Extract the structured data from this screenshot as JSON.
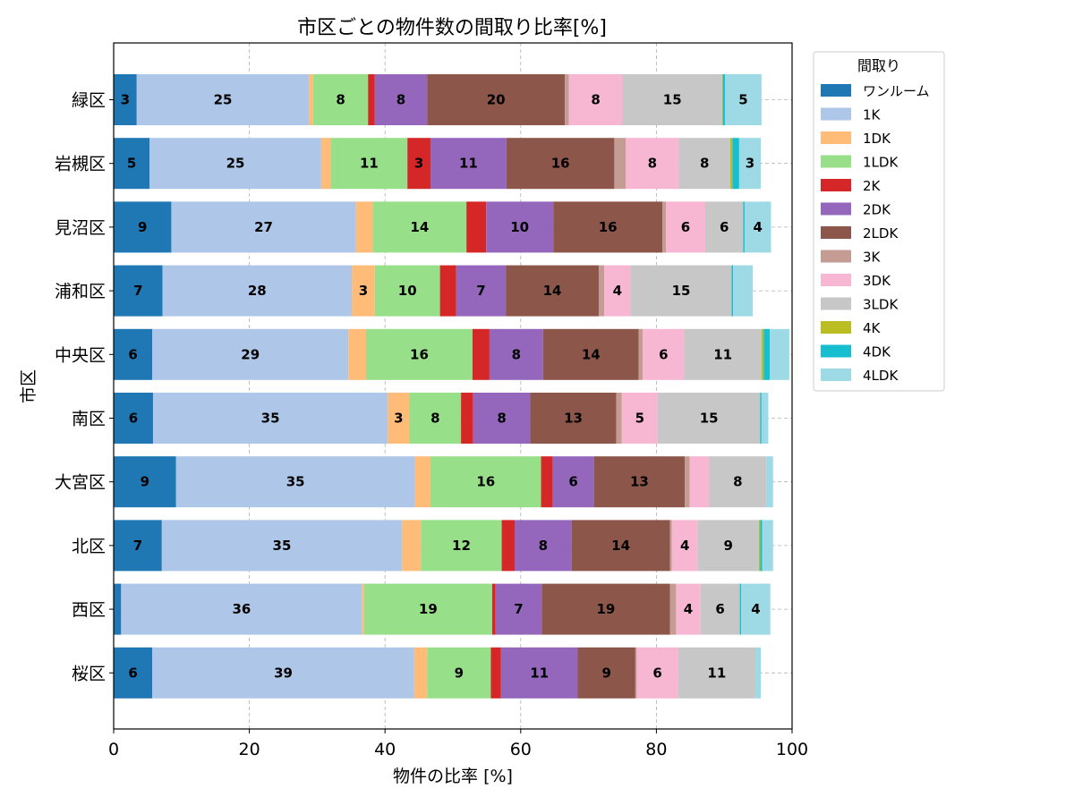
{
  "chart_data": {
    "type": "bar",
    "orientation": "horizontal",
    "stacked": true,
    "title": "市区ごとの物件数の間取り比率[%]",
    "xlabel": "物件の比率 [%]",
    "ylabel": "市区",
    "xlim": [
      0,
      100
    ],
    "xticks": [
      0,
      20,
      40,
      60,
      80,
      100
    ],
    "grid": true,
    "legend": {
      "title": "間取り",
      "placement": "outside-top-right"
    },
    "categories": [
      "緑区",
      "岩槻区",
      "見沼区",
      "浦和区",
      "中央区",
      "南区",
      "大宮区",
      "北区",
      "西区",
      "桜区"
    ],
    "series": [
      {
        "name": "ワンルーム",
        "color": "#1f77b4",
        "values": [
          3.4,
          5.3,
          8.5,
          7.2,
          5.7,
          5.8,
          9.2,
          7.1,
          1.1,
          5.7
        ]
      },
      {
        "name": "1K",
        "color": "#aec7e8",
        "values": [
          25.4,
          25.3,
          27.2,
          27.9,
          28.9,
          34.6,
          35.2,
          35.4,
          35.5,
          38.6
        ]
      },
      {
        "name": "1DK",
        "color": "#ffbb78",
        "values": [
          0.6,
          1.4,
          2.5,
          3.4,
          2.6,
          3.2,
          2.3,
          2.8,
          0.3,
          1.9
        ]
      },
      {
        "name": "1LDK",
        "color": "#98df8a",
        "values": [
          8.1,
          11.3,
          13.8,
          9.6,
          15.7,
          7.6,
          16.3,
          11.9,
          18.9,
          9.4
        ]
      },
      {
        "name": "2K",
        "color": "#d62728",
        "values": [
          1.0,
          3.4,
          2.9,
          2.4,
          2.5,
          1.8,
          1.7,
          1.9,
          0.5,
          1.5
        ]
      },
      {
        "name": "2DK",
        "color": "#9467bd",
        "values": [
          7.7,
          11.2,
          9.9,
          7.3,
          7.9,
          8.4,
          6.1,
          8.4,
          6.8,
          11.3
        ]
      },
      {
        "name": "2LDK",
        "color": "#8c564b",
        "values": [
          20.3,
          15.9,
          16.1,
          13.7,
          14.1,
          12.7,
          13.4,
          14.5,
          18.9,
          8.5
        ]
      },
      {
        "name": "3K",
        "color": "#c49c94",
        "values": [
          0.6,
          1.7,
          0.5,
          0.8,
          0.6,
          0.8,
          0.7,
          0.3,
          0.9,
          0.2
        ]
      },
      {
        "name": "3DK",
        "color": "#f7b6d2",
        "values": [
          7.9,
          7.8,
          5.8,
          3.9,
          6.1,
          5.3,
          2.9,
          3.8,
          3.6,
          6.1
        ]
      },
      {
        "name": "3LDK",
        "color": "#c7c7c7",
        "values": [
          14.7,
          7.6,
          5.6,
          14.9,
          11.4,
          15.1,
          8.4,
          9.0,
          5.8,
          11.4
        ]
      },
      {
        "name": "4K",
        "color": "#bcbd22",
        "values": [
          0.1,
          0.3,
          0,
          0,
          0.3,
          0,
          0,
          0.2,
          0,
          0
        ]
      },
      {
        "name": "4DK",
        "color": "#17becf",
        "values": [
          0.3,
          1.0,
          0.2,
          0.2,
          0.9,
          0.2,
          0,
          0.3,
          0.2,
          0
        ]
      },
      {
        "name": "4LDK",
        "color": "#9edae5",
        "values": [
          5.4,
          3.2,
          3.9,
          2.9,
          2.9,
          1.0,
          1.0,
          1.6,
          4.3,
          0.8
        ]
      }
    ],
    "data_labels": [
      [
        "3",
        "25",
        "",
        "8",
        "",
        "8",
        "20",
        "",
        "8",
        "15",
        "",
        "",
        "5"
      ],
      [
        "5",
        "25",
        "",
        "11",
        "3",
        "11",
        "16",
        "",
        "8",
        "8",
        "",
        "",
        "3"
      ],
      [
        "9",
        "27",
        "",
        "14",
        "",
        "10",
        "16",
        "",
        "6",
        "6",
        "",
        "",
        "4"
      ],
      [
        "7",
        "28",
        "3",
        "10",
        "",
        "7",
        "14",
        "",
        "4",
        "15",
        "",
        "",
        ""
      ],
      [
        "6",
        "29",
        "",
        "16",
        "",
        "8",
        "14",
        "",
        "6",
        "11",
        "",
        "",
        ""
      ],
      [
        "6",
        "35",
        "3",
        "8",
        "",
        "8",
        "13",
        "",
        "5",
        "15",
        "",
        "",
        ""
      ],
      [
        "9",
        "35",
        "",
        "16",
        "",
        "6",
        "13",
        "",
        "",
        "8",
        "",
        "",
        ""
      ],
      [
        "7",
        "35",
        "",
        "12",
        "",
        "8",
        "14",
        "",
        "4",
        "9",
        "",
        "",
        ""
      ],
      [
        "",
        "36",
        "",
        "19",
        "",
        "7",
        "19",
        "",
        "4",
        "6",
        "",
        "",
        "4"
      ],
      [
        "6",
        "39",
        "",
        "9",
        "",
        "11",
        "9",
        "",
        "6",
        "11",
        "",
        "",
        ""
      ]
    ]
  }
}
